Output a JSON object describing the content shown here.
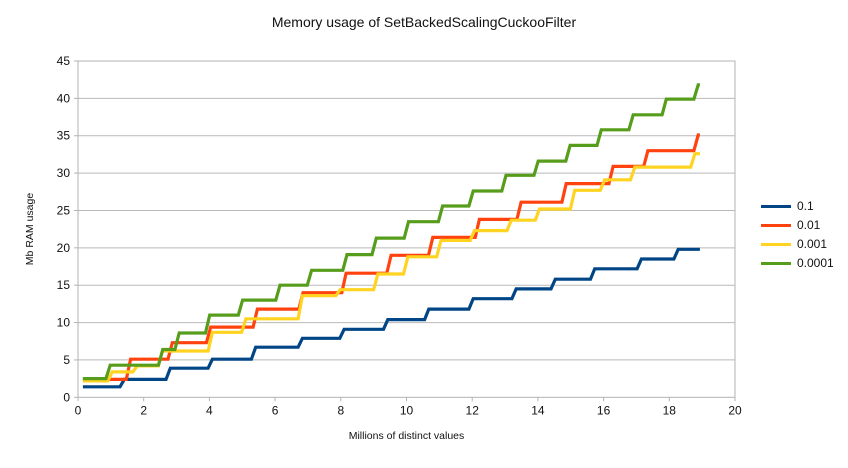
{
  "palette": {
    "background": "#ffffff",
    "grid": "#b9b9b9",
    "axis": "#b3b3b3",
    "text": "#111111"
  },
  "chart_data": {
    "type": "line",
    "step": true,
    "title": "Memory usage of SetBackedScalingCuckooFilter",
    "xlabel": "Millions of distinct values",
    "ylabel": "Mb RAM usage",
    "xlim": [
      0,
      20
    ],
    "ylim": [
      0,
      45
    ],
    "x_ticks": [
      0,
      2,
      4,
      6,
      8,
      10,
      12,
      14,
      16,
      18,
      20
    ],
    "y_ticks": [
      0,
      5,
      10,
      15,
      20,
      25,
      30,
      35,
      40,
      45
    ],
    "grid": "horizontal",
    "legend_position": "right",
    "series": [
      {
        "name": "0.1",
        "color": "#004586",
        "start": [
          0.15,
          1.4
        ],
        "end_x": 18.93,
        "steps": [
          [
            1.28,
            2.4
          ],
          [
            2.68,
            3.9
          ],
          [
            3.96,
            5.1
          ],
          [
            5.28,
            6.7
          ],
          [
            6.7,
            7.9
          ],
          [
            7.97,
            9.1
          ],
          [
            9.3,
            10.4
          ],
          [
            10.55,
            11.8
          ],
          [
            11.9,
            13.2
          ],
          [
            13.21,
            14.5
          ],
          [
            14.4,
            15.8
          ],
          [
            15.6,
            17.2
          ],
          [
            17.02,
            18.5
          ],
          [
            18.14,
            19.8
          ]
        ]
      },
      {
        "name": "0.01",
        "color": "#ff420e",
        "start": [
          0.15,
          2.4
        ],
        "end_x": 18.93,
        "steps": [
          [
            1.47,
            5.1
          ],
          [
            2.74,
            7.3
          ],
          [
            3.91,
            9.4
          ],
          [
            5.33,
            11.8
          ],
          [
            6.72,
            14.0
          ],
          [
            8.03,
            16.6
          ],
          [
            9.4,
            19.0
          ],
          [
            10.67,
            21.4
          ],
          [
            12.09,
            23.8
          ],
          [
            13.36,
            26.1
          ],
          [
            14.73,
            28.6
          ],
          [
            16.16,
            30.9
          ],
          [
            17.22,
            33.0
          ],
          [
            18.75,
            35.1
          ]
        ]
      },
      {
        "name": "0.001",
        "color": "#ffd320",
        "start": [
          0.15,
          2.2
        ],
        "end_x": 18.93,
        "steps": [
          [
            0.91,
            3.4
          ],
          [
            1.67,
            4.2
          ],
          [
            2.44,
            6.2
          ],
          [
            3.96,
            8.7
          ],
          [
            4.98,
            10.5
          ],
          [
            6.7,
            13.6
          ],
          [
            7.85,
            14.4
          ],
          [
            9.0,
            16.5
          ],
          [
            9.91,
            18.8
          ],
          [
            10.92,
            21.0
          ],
          [
            11.94,
            22.3
          ],
          [
            13.06,
            23.7
          ],
          [
            13.92,
            25.2
          ],
          [
            14.99,
            27.7
          ],
          [
            15.9,
            29.1
          ],
          [
            16.82,
            30.8
          ],
          [
            18.65,
            32.6
          ]
        ]
      },
      {
        "name": "0.0001",
        "color": "#579d1c",
        "start": [
          0.15,
          2.5
        ],
        "end_x": 18.93,
        "steps": [
          [
            0.85,
            4.3
          ],
          [
            2.45,
            6.4
          ],
          [
            2.95,
            8.6
          ],
          [
            3.88,
            11.0
          ],
          [
            4.88,
            13.0
          ],
          [
            6.02,
            15.0
          ],
          [
            6.98,
            17.0
          ],
          [
            8.06,
            19.1
          ],
          [
            8.95,
            21.3
          ],
          [
            9.93,
            23.5
          ],
          [
            10.97,
            25.6
          ],
          [
            11.9,
            27.6
          ],
          [
            12.9,
            29.7
          ],
          [
            13.88,
            31.6
          ],
          [
            14.85,
            33.7
          ],
          [
            15.8,
            35.8
          ],
          [
            16.77,
            37.8
          ],
          [
            17.78,
            39.9
          ],
          [
            18.75,
            41.8
          ]
        ]
      }
    ]
  }
}
